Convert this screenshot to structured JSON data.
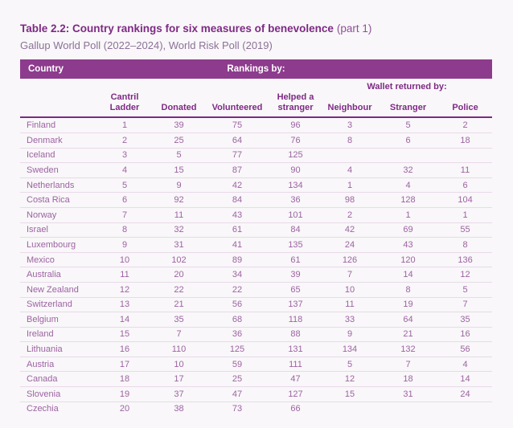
{
  "title": {
    "main": "Table 2.2: Country rankings for six measures of benevolence",
    "part": "(part 1)"
  },
  "subtitle": "Gallup World Poll (2022–2024), World Risk Poll (2019)",
  "header_bar": {
    "country": "Country",
    "rankings": "Rankings by:"
  },
  "table": {
    "wallet_group_label": "Wallet returned by:",
    "columns": [
      "Cantril Ladder",
      "Donated",
      "Volunteered",
      "Helped a stranger",
      "Neighbour",
      "Stranger",
      "Police"
    ],
    "rows": [
      {
        "country": "Finland",
        "values": [
          "1",
          "39",
          "75",
          "96",
          "3",
          "5",
          "2"
        ]
      },
      {
        "country": "Denmark",
        "values": [
          "2",
          "25",
          "64",
          "76",
          "8",
          "6",
          "18"
        ]
      },
      {
        "country": "Iceland",
        "values": [
          "3",
          "5",
          "77",
          "125",
          "",
          "",
          ""
        ]
      },
      {
        "country": "Sweden",
        "values": [
          "4",
          "15",
          "87",
          "90",
          "4",
          "32",
          "11"
        ]
      },
      {
        "country": "Netherlands",
        "values": [
          "5",
          "9",
          "42",
          "134",
          "1",
          "4",
          "6"
        ]
      },
      {
        "country": "Costa Rica",
        "values": [
          "6",
          "92",
          "84",
          "36",
          "98",
          "128",
          "104"
        ]
      },
      {
        "country": "Norway",
        "values": [
          "7",
          "11",
          "43",
          "101",
          "2",
          "1",
          "1"
        ]
      },
      {
        "country": "Israel",
        "values": [
          "8",
          "32",
          "61",
          "84",
          "42",
          "69",
          "55"
        ]
      },
      {
        "country": "Luxembourg",
        "values": [
          "9",
          "31",
          "41",
          "135",
          "24",
          "43",
          "8"
        ]
      },
      {
        "country": "Mexico",
        "values": [
          "10",
          "102",
          "89",
          "61",
          "126",
          "120",
          "136"
        ]
      },
      {
        "country": "Australia",
        "values": [
          "11",
          "20",
          "34",
          "39",
          "7",
          "14",
          "12"
        ]
      },
      {
        "country": "New Zealand",
        "values": [
          "12",
          "22",
          "22",
          "65",
          "10",
          "8",
          "5"
        ]
      },
      {
        "country": "Switzerland",
        "values": [
          "13",
          "21",
          "56",
          "137",
          "11",
          "19",
          "7"
        ]
      },
      {
        "country": "Belgium",
        "values": [
          "14",
          "35",
          "68",
          "118",
          "33",
          "64",
          "35"
        ]
      },
      {
        "country": "Ireland",
        "values": [
          "15",
          "7",
          "36",
          "88",
          "9",
          "21",
          "16"
        ]
      },
      {
        "country": "Lithuania",
        "values": [
          "16",
          "110",
          "125",
          "131",
          "134",
          "132",
          "56"
        ]
      },
      {
        "country": "Austria",
        "values": [
          "17",
          "10",
          "59",
          "111",
          "5",
          "7",
          "4"
        ]
      },
      {
        "country": "Canada",
        "values": [
          "18",
          "17",
          "25",
          "47",
          "12",
          "18",
          "14"
        ]
      },
      {
        "country": "Slovenia",
        "values": [
          "19",
          "37",
          "47",
          "127",
          "15",
          "31",
          "24"
        ]
      },
      {
        "country": "Czechia",
        "values": [
          "20",
          "38",
          "73",
          "66",
          "",
          "",
          ""
        ]
      }
    ]
  },
  "colors": {
    "accent_purple": "#8d3b8d",
    "header_text": "#7d2a84",
    "row_text": "#9c63a2",
    "row_separator": "#e8dae9",
    "background": "#f9f7f9"
  }
}
